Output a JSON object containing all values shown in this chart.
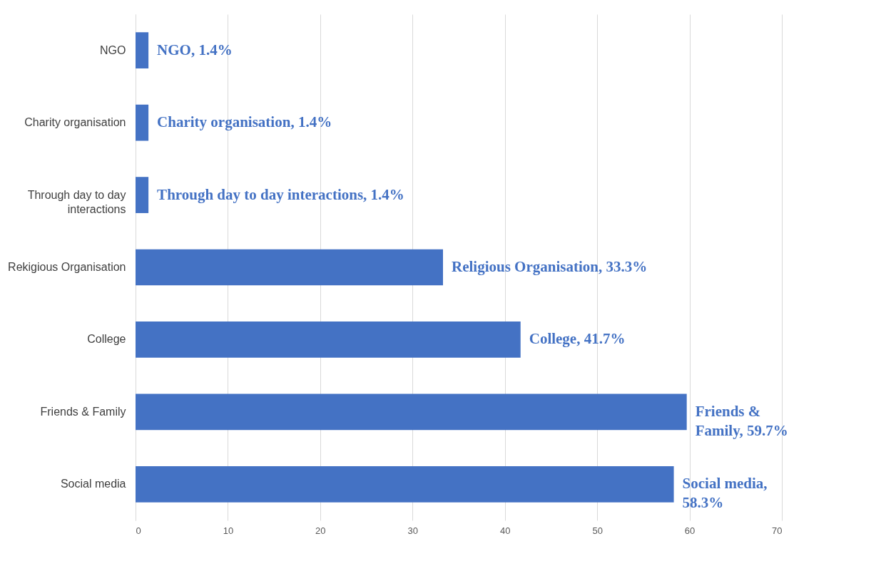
{
  "chart_data": {
    "type": "bar",
    "orientation": "horizontal",
    "categories": [
      "NGO",
      "Charity organisation",
      "Through day to day interactions",
      "Rekigious Organisation",
      "College",
      "Friends & Family",
      "Social media"
    ],
    "values": [
      1.4,
      1.4,
      1.4,
      33.3,
      41.7,
      59.7,
      58.3
    ],
    "value_labels": [
      "NGO, 1.4%",
      "Charity organisation, 1.4%",
      "Through day to day interactions, 1.4%",
      "Religious Organisation, 33.3%",
      "College, 41.7%",
      "Friends & Family, 59.7%",
      "Social media, 58.3%"
    ],
    "color": "#4472c4",
    "xlim": [
      0,
      70
    ],
    "xticks": [
      0,
      10,
      20,
      30,
      40,
      50,
      60,
      70
    ],
    "grid": "x"
  }
}
